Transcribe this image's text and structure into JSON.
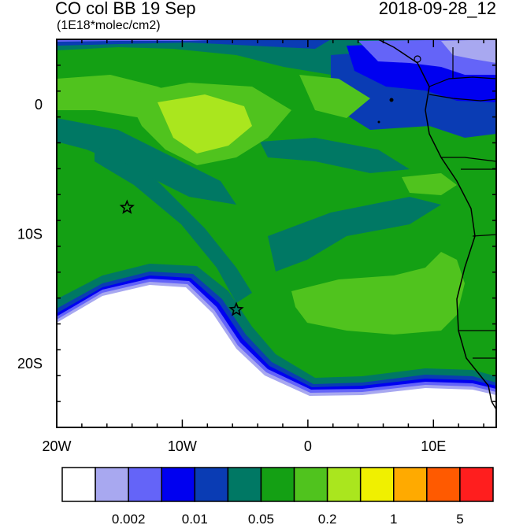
{
  "header": {
    "title": "CO col BB 19 Sep",
    "units": "(1E18*molec/cm2)",
    "datetime": "2018-09-28_12"
  },
  "map": {
    "lon_range": [
      -20,
      15
    ],
    "lat_range": [
      -25,
      5
    ],
    "x_ticks": [
      {
        "value": -20,
        "label": "20W"
      },
      {
        "value": -10,
        "label": "10W"
      },
      {
        "value": 0,
        "label": "0"
      },
      {
        "value": 10,
        "label": "10E"
      }
    ],
    "y_ticks": [
      {
        "value": 0,
        "label": "0"
      },
      {
        "value": -10,
        "label": "10S"
      },
      {
        "value": -20,
        "label": "20S"
      }
    ],
    "markers": [
      {
        "name": "star",
        "lon": -14.4,
        "lat": -8.0
      },
      {
        "name": "star",
        "lon": -5.7,
        "lat": -15.9
      }
    ]
  },
  "colorbar": {
    "colors": [
      "#ffffff",
      "#a8a8f0",
      "#6464f8",
      "#0000f0",
      "#0a3cb4",
      "#007864",
      "#14a014",
      "#50c31e",
      "#aae61e",
      "#f0f000",
      "#ffaa00",
      "#ff5a00",
      "#ff1e1e"
    ],
    "labels": [
      {
        "after_box": 2,
        "text": "0.002"
      },
      {
        "after_box": 4,
        "text": "0.01"
      },
      {
        "after_box": 6,
        "text": "0.05"
      },
      {
        "after_box": 8,
        "text": "0.2"
      },
      {
        "after_box": 10,
        "text": "1"
      },
      {
        "after_box": 12,
        "text": "5"
      }
    ]
  }
}
